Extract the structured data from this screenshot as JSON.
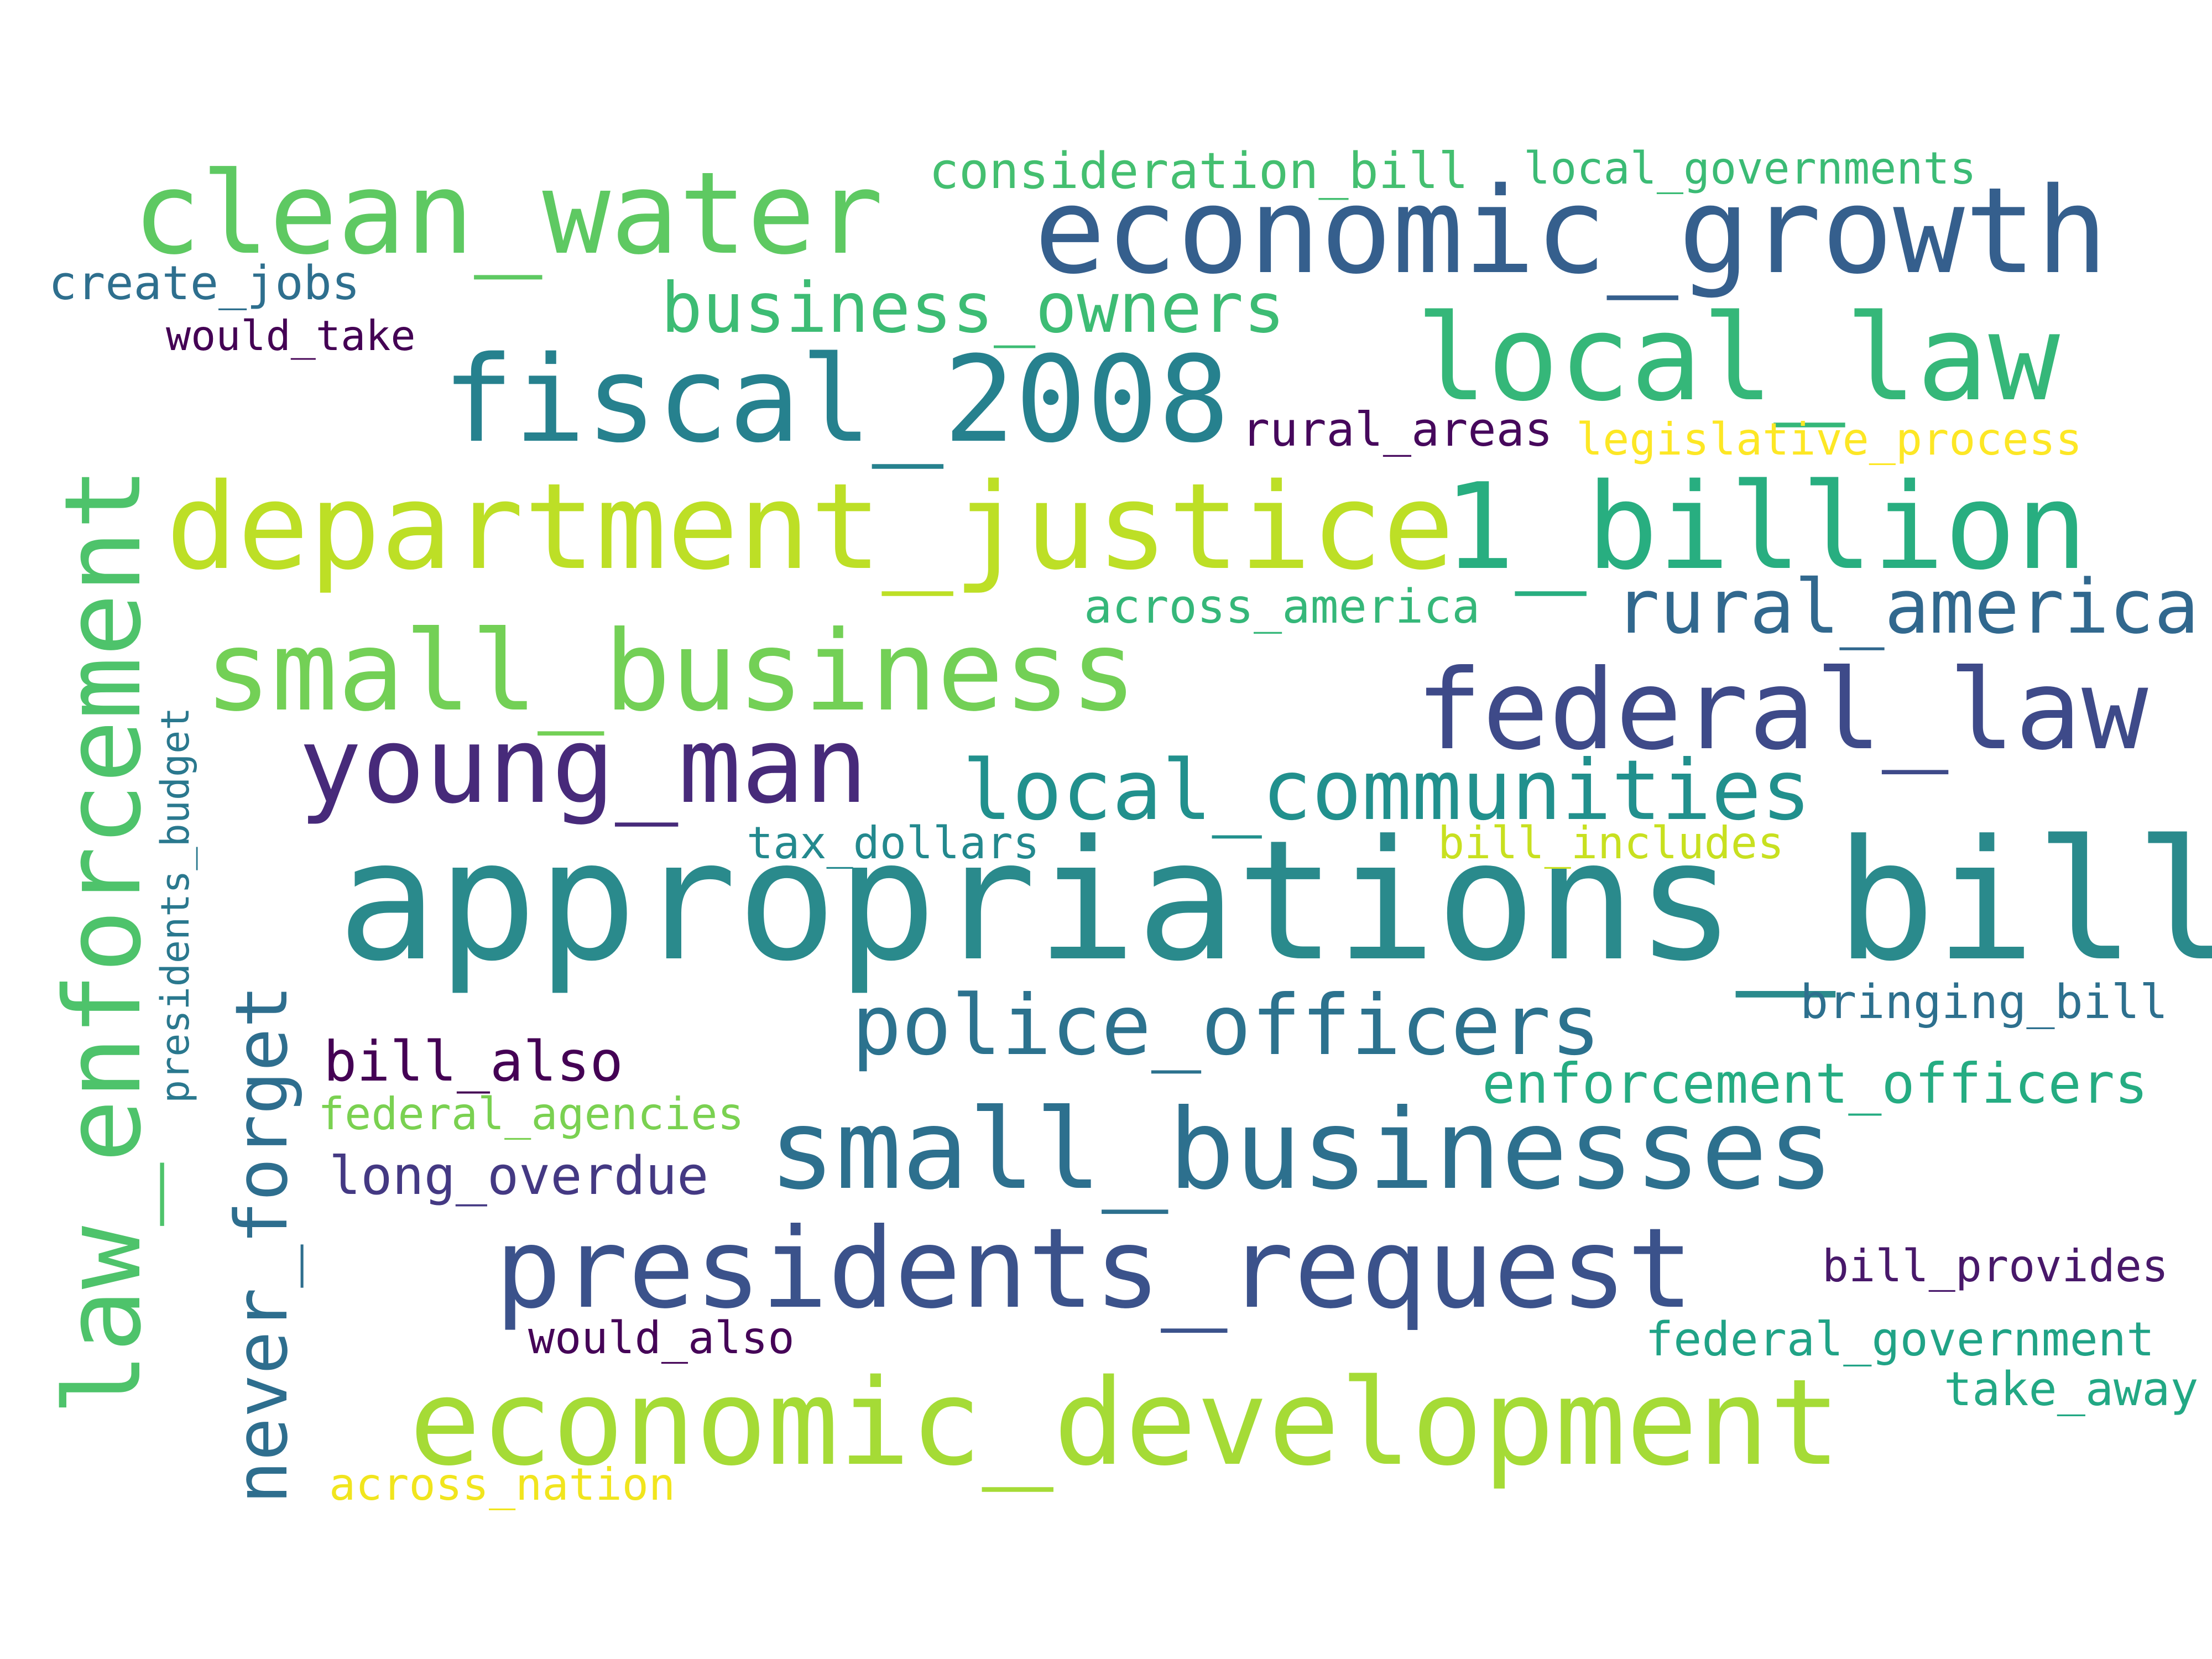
{
  "words": {
    "appropriations_bill": {
      "text": "appropriations_bill",
      "color": "#2a8a8c"
    },
    "economic_growth": {
      "text": "economic_growth",
      "color": "#355f8d"
    },
    "clean_water": {
      "text": "clean_water",
      "color": "#5ec962"
    },
    "fiscal_2008": {
      "text": "fiscal_2008",
      "color": "#26818e"
    },
    "department_justice": {
      "text": "department_justice",
      "color": "#bddf26"
    },
    "1_billion": {
      "text": "1_billion",
      "color": "#28ae80"
    },
    "local_law": {
      "text": "local_law",
      "color": "#35b779"
    },
    "small_business": {
      "text": "small_business",
      "color": "#73d056"
    },
    "federal_law": {
      "text": "federal_law",
      "color": "#3e4a89"
    },
    "young_man": {
      "text": "young_man",
      "color": "#472a7a"
    },
    "local_communities": {
      "text": "local_communities",
      "color": "#21908d"
    },
    "rural_america": {
      "text": "rural_america",
      "color": "#31688e"
    },
    "business_owners": {
      "text": "business_owners",
      "color": "#3dbc74"
    },
    "police_officers": {
      "text": "police_officers",
      "color": "#2c728e"
    },
    "small_businesses": {
      "text": "small_businesses",
      "color": "#2d708e"
    },
    "presidents_request": {
      "text": "presidents_request",
      "color": "#3b528b"
    },
    "economic_development": {
      "text": "economic_development",
      "color": "#a5db36"
    },
    "law_enforcement": {
      "text": "law_enforcement",
      "color": "#4ec36b"
    },
    "never_forget": {
      "text": "never_forget",
      "color": "#2e6e8e"
    },
    "presidents_budget": {
      "text": "presidents_budget",
      "color": "#2a788e"
    },
    "consideration_bill": {
      "text": "consideration_bill",
      "color": "#44bf70"
    },
    "local_governments": {
      "text": "local_governments",
      "color": "#3bbb75"
    },
    "create_jobs": {
      "text": "create_jobs",
      "color": "#2e6f8e"
    },
    "would_take": {
      "text": "would_take",
      "color": "#440154"
    },
    "rural_areas": {
      "text": "rural_areas",
      "color": "#46085c"
    },
    "legislative_process": {
      "text": "legislative_process",
      "color": "#fde725"
    },
    "across_america": {
      "text": "across_america",
      "color": "#35b779"
    },
    "tax_dollars": {
      "text": "tax_dollars",
      "color": "#23898e"
    },
    "bill_includes": {
      "text": "bill_includes",
      "color": "#c8e020"
    },
    "bringing_bill": {
      "text": "bringing_bill",
      "color": "#2d708e"
    },
    "bill_also": {
      "text": "bill_also",
      "color": "#440154"
    },
    "enforcement_officers": {
      "text": "enforcement_officers",
      "color": "#25ac82"
    },
    "federal_agencies": {
      "text": "federal_agencies",
      "color": "#7ad151"
    },
    "long_overdue": {
      "text": "long_overdue",
      "color": "#443983"
    },
    "bill_provides": {
      "text": "bill_provides",
      "color": "#48186a"
    },
    "would_also": {
      "text": "would_also",
      "color": "#450457"
    },
    "federal_government": {
      "text": "federal_government",
      "color": "#20a386"
    },
    "take_away": {
      "text": "take_away",
      "color": "#22a884"
    },
    "across_nation": {
      "text": "across_nation",
      "color": "#f1e51d"
    }
  }
}
